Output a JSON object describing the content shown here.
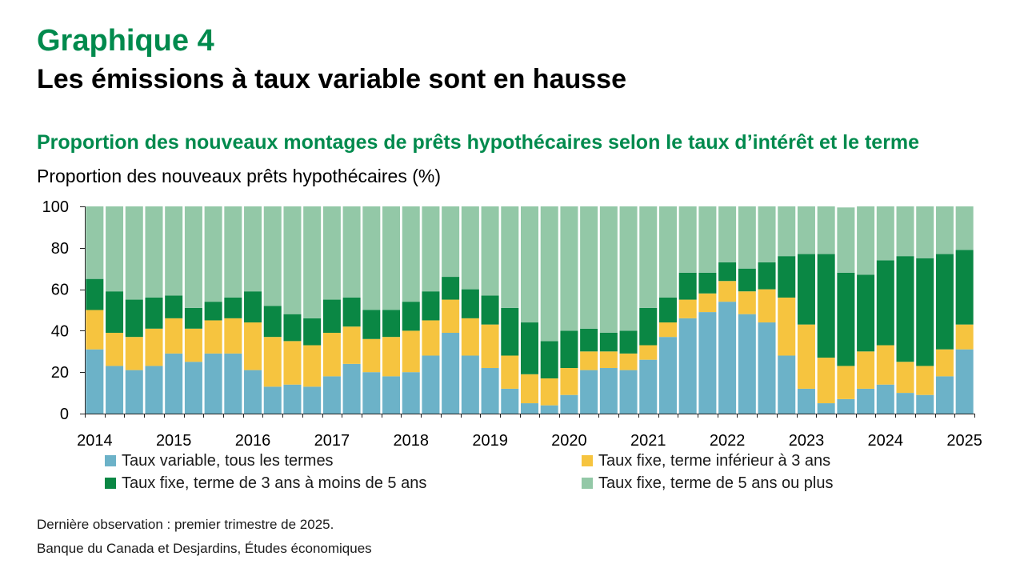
{
  "colors": {
    "accent": "#008A4D",
    "text": "#000000"
  },
  "chart_data": {
    "type": "bar",
    "stacked": true,
    "figure_label": "Graphique 4",
    "title": "Les émissions à taux variable sont en hausse",
    "subtitle": "Proportion des nouveaux montages de prêts hypothécaires selon le taux d’intérêt et le terme",
    "ylabel": "Proportion des nouveaux prêts hypothécaires (%)",
    "xlabel": "",
    "ylim": [
      0,
      100
    ],
    "yticks": [
      0,
      20,
      40,
      60,
      80,
      100
    ],
    "xticks": [
      "2014",
      "2015",
      "2016",
      "2017",
      "2018",
      "2019",
      "2020",
      "2021",
      "2022",
      "2023",
      "2024",
      "2025"
    ],
    "grid": false,
    "legend_position": "bottom",
    "x": [
      2014,
      2014.25,
      2014.5,
      2014.75,
      2015,
      2015.25,
      2015.5,
      2015.75,
      2016,
      2016.25,
      2016.5,
      2016.75,
      2017,
      2017.25,
      2017.5,
      2017.75,
      2018,
      2018.25,
      2018.5,
      2018.75,
      2019,
      2019.25,
      2019.5,
      2019.75,
      2020,
      2020.25,
      2020.5,
      2020.75,
      2021,
      2021.25,
      2021.5,
      2021.75,
      2022,
      2022.25,
      2022.5,
      2022.75,
      2023,
      2023.25,
      2023.5,
      2023.75,
      2024,
      2024.25,
      2024.5,
      2024.75,
      2025
    ],
    "series": [
      {
        "name": "Taux variable, tous les termes",
        "color": "#6CB2C8",
        "values": [
          31,
          23,
          21,
          23,
          29,
          25,
          29,
          29,
          21,
          13,
          14,
          13,
          18,
          24,
          20,
          18,
          20,
          28,
          39,
          28,
          22,
          12,
          5,
          4,
          9,
          21,
          22,
          21,
          26,
          37,
          46,
          49,
          54,
          48,
          44,
          28,
          12,
          5,
          7,
          12,
          14,
          10,
          9,
          18,
          31
        ]
      },
      {
        "name": "Taux fixe, terme inférieur à 3 ans",
        "color": "#F6C43F",
        "values": [
          19,
          16,
          16,
          18,
          17,
          16,
          16,
          17,
          23,
          24,
          21,
          20,
          21,
          18,
          16,
          19,
          20,
          17,
          16,
          18,
          21,
          16,
          14,
          13,
          13,
          9,
          8,
          8,
          7,
          7,
          9,
          9,
          10,
          11,
          16,
          28,
          31,
          22,
          16,
          18,
          19,
          15,
          14,
          13,
          12
        ]
      },
      {
        "name": "Taux fixe, terme de 3 ans à moins de 5 ans",
        "color": "#0A8744",
        "values": [
          15,
          20,
          18,
          15,
          11,
          10,
          9,
          10,
          15,
          15,
          13,
          13,
          16,
          14,
          14,
          13,
          14,
          14,
          11,
          14,
          14,
          23,
          25,
          18,
          18,
          11,
          9,
          11,
          18,
          12,
          13,
          10,
          9,
          11,
          13,
          20,
          34,
          50,
          45,
          37,
          41,
          51,
          52,
          46,
          36
        ]
      },
      {
        "name": "Taux fixe, terme de 5 ans ou plus",
        "color": "#93C8A7",
        "values": [
          35,
          41,
          45,
          44,
          43,
          49,
          46,
          44,
          41,
          48,
          52,
          54,
          45,
          44,
          50,
          50,
          46,
          41,
          34,
          40,
          43,
          49,
          56,
          65,
          60,
          59,
          61,
          60,
          49,
          44,
          32,
          32,
          27,
          30,
          27,
          24,
          23,
          23,
          31.5,
          33,
          26,
          24,
          25,
          23,
          21
        ]
      }
    ]
  },
  "notes": {
    "last_observation": "Dernière observation : premier trimestre de 2025.",
    "source": "Banque du Canada et Desjardins, Études économiques"
  }
}
